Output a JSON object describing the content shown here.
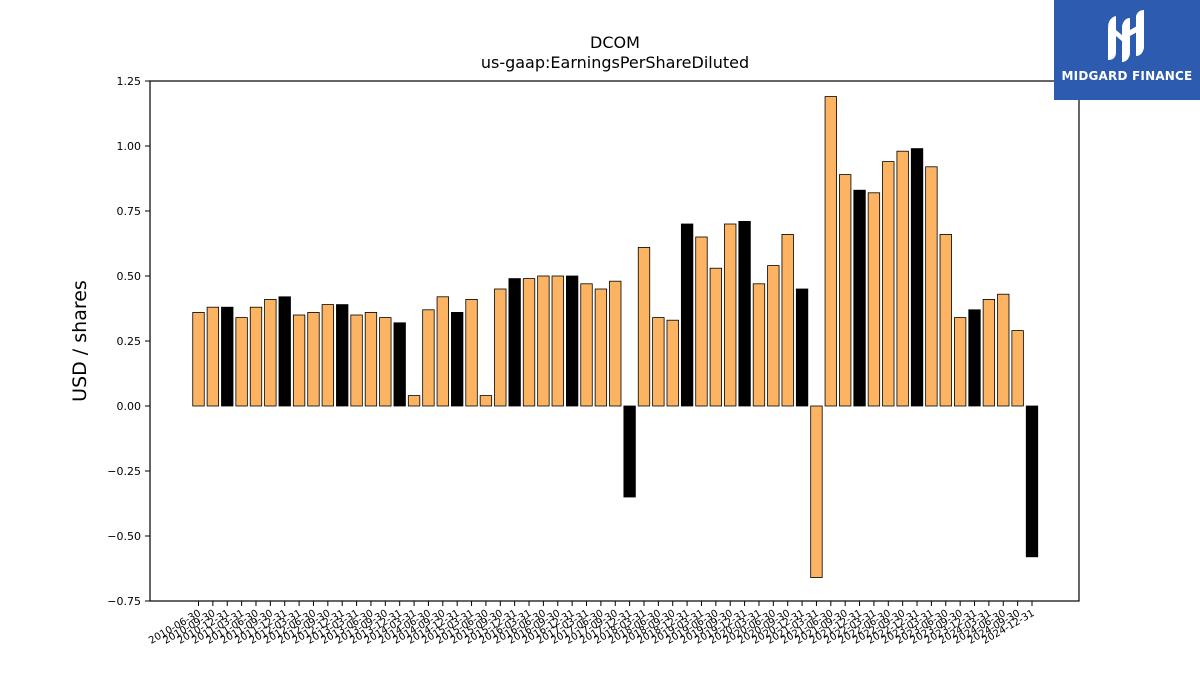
{
  "brand": {
    "name": "MIDGARD FINANCE",
    "logo_icon": "midgard-m-logo-icon",
    "color": "#2d5bb0"
  },
  "chart_data": {
    "type": "bar",
    "title": "DCOM",
    "subtitle": "us-gaap:EarningsPerShareDiluted",
    "xlabel": "",
    "ylabel": "USD / shares",
    "ylim": [
      -0.75,
      1.25
    ],
    "yticks": [
      1.25,
      1.0,
      0.75,
      0.5,
      0.25,
      0.0,
      -0.25,
      -0.5,
      -0.75
    ],
    "ytick_labels": [
      "1.25",
      "1.00",
      "0.75",
      "0.50",
      "0.25",
      "0.00",
      "−0.25",
      "−0.50",
      "−0.75"
    ],
    "grid": false,
    "colors": {
      "quarter": "#fdb462",
      "annual": "#000000"
    },
    "categories": [
      "2010-06-30",
      "2010-09-30",
      "2010-12-31",
      "2011-03-31",
      "2011-06-30",
      "2011-09-30",
      "2011-12-31",
      "2012-03-31",
      "2012-06-30",
      "2012-09-30",
      "2012-12-31",
      "2013-03-31",
      "2013-06-30",
      "2013-09-30",
      "2013-12-31",
      "2014-03-31",
      "2014-06-30",
      "2014-09-30",
      "2014-12-31",
      "2015-03-31",
      "2015-06-30",
      "2015-09-30",
      "2015-12-31",
      "2016-03-31",
      "2016-06-30",
      "2016-09-30",
      "2016-12-31",
      "2017-03-31",
      "2017-06-30",
      "2017-09-30",
      "2017-12-31",
      "2018-03-31",
      "2018-06-30",
      "2018-09-30",
      "2018-12-31",
      "2019-03-31",
      "2019-06-30",
      "2019-09-30",
      "2019-12-31",
      "2020-03-31",
      "2020-06-30",
      "2020-09-30",
      "2020-12-31",
      "2021-03-31",
      "2021-06-30",
      "2021-09-30",
      "2021-12-31",
      "2022-03-31",
      "2022-06-30",
      "2022-09-30",
      "2022-12-31",
      "2023-03-31",
      "2023-06-30",
      "2023-09-30",
      "2023-12-31",
      "2024-03-31",
      "2024-06-30",
      "2024-09-30",
      "2024-12-31"
    ],
    "values": [
      0.36,
      0.38,
      0.38,
      0.34,
      0.38,
      0.41,
      0.42,
      0.35,
      0.36,
      0.39,
      0.39,
      0.35,
      0.36,
      0.34,
      0.32,
      0.04,
      0.37,
      0.42,
      0.36,
      0.41,
      0.04,
      0.45,
      0.49,
      0.49,
      0.5,
      0.5,
      0.5,
      0.47,
      0.45,
      0.48,
      -0.35,
      0.61,
      0.34,
      0.33,
      0.7,
      0.65,
      0.53,
      0.7,
      0.71,
      0.47,
      0.54,
      0.66,
      0.45,
      -0.66,
      1.19,
      0.89,
      0.83,
      0.82,
      0.94,
      0.98,
      0.99,
      0.92,
      0.66,
      0.34,
      0.37,
      0.41,
      0.43,
      0.29,
      -0.58
    ],
    "annual_flags": [
      0,
      0,
      1,
      0,
      0,
      0,
      1,
      0,
      0,
      0,
      1,
      0,
      0,
      0,
      1,
      0,
      0,
      0,
      1,
      0,
      0,
      0,
      1,
      0,
      0,
      0,
      1,
      0,
      0,
      0,
      1,
      0,
      0,
      0,
      1,
      0,
      0,
      0,
      1,
      0,
      0,
      0,
      1,
      0,
      0,
      0,
      1,
      0,
      0,
      0,
      1,
      0,
      0,
      0,
      1,
      0,
      0,
      0,
      1
    ]
  }
}
